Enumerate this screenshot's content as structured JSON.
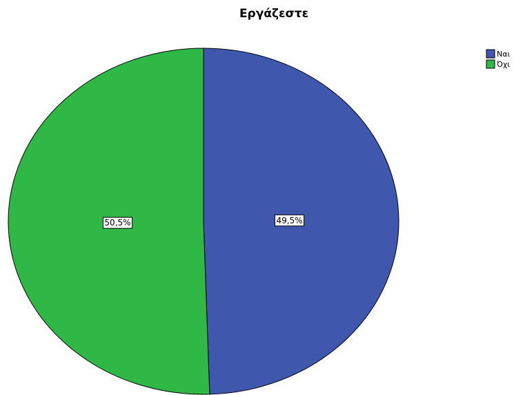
{
  "chart_data": {
    "type": "pie",
    "title": "Εργάζεστε",
    "categories": [
      "Ναι",
      "Όχι"
    ],
    "values": [
      49.5,
      50.5
    ],
    "value_labels": [
      "49,5%",
      "50,5%"
    ],
    "colors": [
      "#3f58ad",
      "#2fb846"
    ],
    "legend": "top-right"
  }
}
